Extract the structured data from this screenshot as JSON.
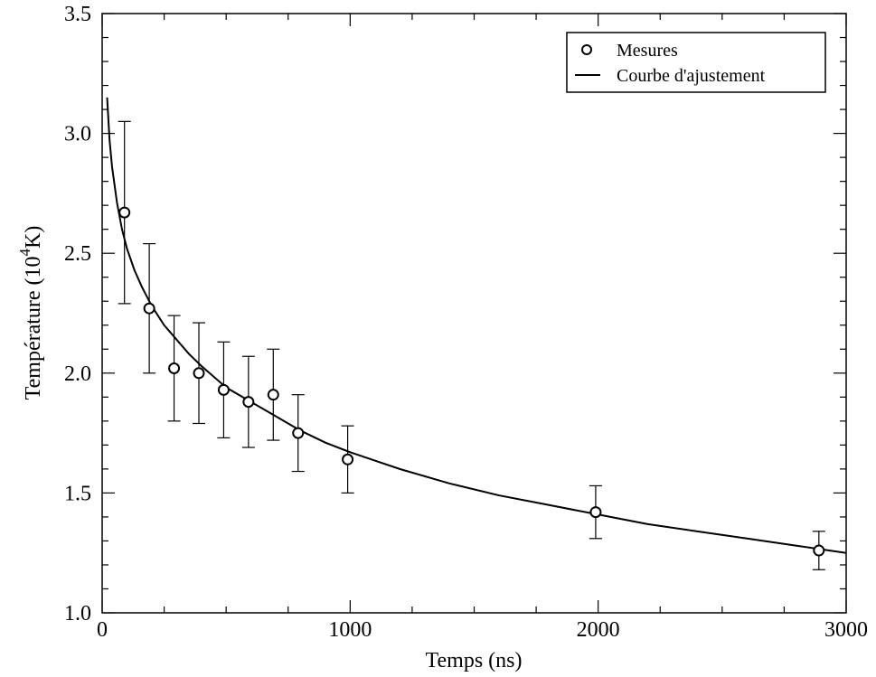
{
  "chart_data": {
    "type": "scatter",
    "xlabel": "Temps (ns)",
    "ylabel": {
      "before": "Température (10",
      "sup": "4",
      "after": "K)"
    },
    "xlim": [
      0,
      3000
    ],
    "ylim": [
      1.0,
      3.5
    ],
    "x_ticks": [
      0,
      1000,
      2000,
      3000
    ],
    "x_tick_labels": [
      "0",
      "1000",
      "2000",
      "3000"
    ],
    "y_ticks": [
      1.0,
      1.5,
      2.0,
      2.5,
      3.0,
      3.5
    ],
    "y_tick_labels": [
      "1.0",
      "1.5",
      "2.0",
      "2.5",
      "3.0",
      "3.5"
    ],
    "grid": false,
    "legend_position": "top-right",
    "series": [
      {
        "name": "Mesures",
        "kind": "points-with-errorbars",
        "marker": "open-circle",
        "x": [
          90,
          190,
          290,
          390,
          490,
          590,
          690,
          790,
          990,
          1990,
          2890
        ],
        "y": [
          2.67,
          2.27,
          2.02,
          2.0,
          1.93,
          1.88,
          1.91,
          1.75,
          1.64,
          1.42,
          1.26
        ],
        "yerr_low": [
          2.29,
          2.0,
          1.8,
          1.79,
          1.73,
          1.69,
          1.72,
          1.59,
          1.5,
          1.31,
          1.18
        ],
        "yerr_high": [
          3.05,
          2.54,
          2.24,
          2.21,
          2.13,
          2.07,
          2.1,
          1.91,
          1.78,
          1.53,
          1.34
        ]
      },
      {
        "name": "Courbe d'ajustement",
        "kind": "line",
        "x": [
          20,
          30,
          40,
          60,
          80,
          100,
          130,
          160,
          200,
          250,
          300,
          350,
          400,
          500,
          600,
          700,
          800,
          900,
          1000,
          1200,
          1400,
          1600,
          1800,
          2000,
          2200,
          2400,
          2600,
          2800,
          3000
        ],
        "y": [
          3.15,
          2.97,
          2.86,
          2.71,
          2.6,
          2.52,
          2.43,
          2.36,
          2.28,
          2.2,
          2.14,
          2.08,
          2.03,
          1.94,
          1.88,
          1.82,
          1.76,
          1.71,
          1.67,
          1.6,
          1.54,
          1.49,
          1.45,
          1.41,
          1.37,
          1.34,
          1.31,
          1.28,
          1.25
        ]
      }
    ]
  }
}
